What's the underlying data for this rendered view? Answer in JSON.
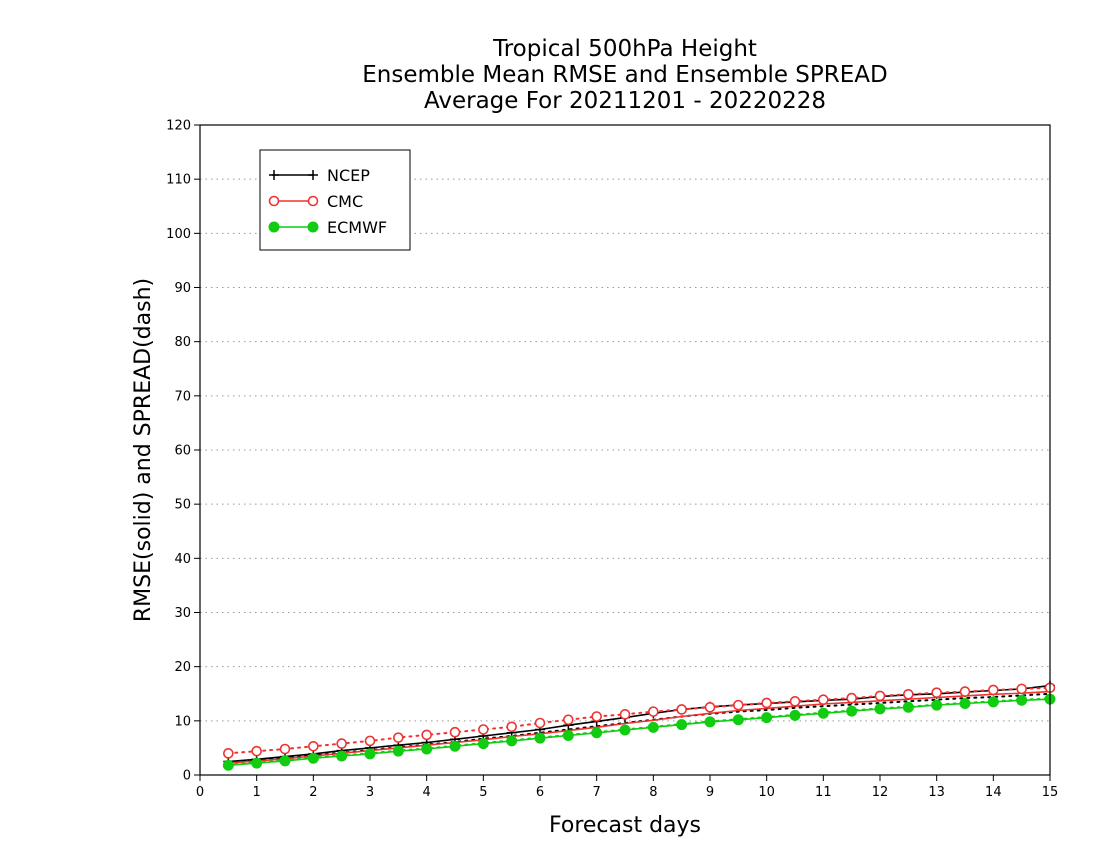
{
  "chart_data": {
    "type": "line",
    "title": [
      "Tropical 500hPa Height",
      "Ensemble Mean RMSE and Ensemble SPREAD",
      "Average For 20211201 - 20220228"
    ],
    "xlabel": "Forecast days",
    "ylabel": "RMSE(solid) and SPREAD(dash)",
    "xlim": [
      0,
      15
    ],
    "ylim": [
      0,
      120
    ],
    "xticks": [
      "0",
      "1",
      "2",
      "3",
      "4",
      "5",
      "6",
      "7",
      "8",
      "9",
      "10",
      "11",
      "12",
      "13",
      "14",
      "15"
    ],
    "yticks": [
      "0",
      "10",
      "20",
      "30",
      "40",
      "50",
      "60",
      "70",
      "80",
      "90",
      "100",
      "110",
      "120"
    ],
    "grid": true,
    "legend_position": "top-left",
    "x": [
      0.5,
      1,
      1.5,
      2,
      2.5,
      3,
      3.5,
      4,
      4.5,
      5,
      5.5,
      6,
      6.5,
      7,
      7.5,
      8,
      8.5,
      9,
      9.5,
      10,
      10.5,
      11,
      11.5,
      12,
      12.5,
      13,
      13.5,
      14,
      14.5,
      15
    ],
    "series": [
      {
        "name": "NCEP",
        "color": "#000000",
        "marker": "plus",
        "rmse": [
          2.5,
          2.9,
          3.4,
          3.9,
          4.5,
          5.0,
          5.5,
          6.0,
          6.6,
          7.2,
          7.8,
          8.4,
          9.2,
          9.9,
          10.6,
          11.4,
          12.1,
          12.6,
          12.9,
          13.2,
          13.5,
          13.8,
          14.0,
          14.5,
          14.8,
          15.0,
          15.3,
          15.6,
          15.9,
          16.5
        ],
        "spread": [
          2.3,
          2.7,
          3.1,
          3.6,
          4.1,
          4.6,
          5.1,
          5.6,
          6.1,
          6.7,
          7.2,
          7.8,
          8.4,
          9.0,
          9.6,
          10.2,
          10.8,
          11.3,
          11.7,
          12.0,
          12.4,
          12.7,
          13.0,
          13.3,
          13.6,
          13.9,
          14.2,
          14.4,
          14.7,
          15.0
        ]
      },
      {
        "name": "CMC",
        "color": "#ee3333",
        "marker": "open-circle",
        "rmse": [
          2.2,
          2.6,
          3.0,
          3.5,
          4.0,
          4.5,
          5.0,
          5.5,
          6.0,
          6.5,
          7.1,
          7.6,
          8.2,
          8.8,
          9.5,
          10.1,
          10.8,
          11.4,
          11.9,
          12.3,
          12.7,
          13.1,
          13.4,
          13.7,
          14.0,
          14.3,
          14.6,
          14.9,
          15.1,
          15.4
        ],
        "spread": [
          4.0,
          4.4,
          4.8,
          5.3,
          5.8,
          6.3,
          6.9,
          7.4,
          7.9,
          8.4,
          8.9,
          9.6,
          10.2,
          10.8,
          11.2,
          11.7,
          12.1,
          12.5,
          12.9,
          13.3,
          13.6,
          13.9,
          14.2,
          14.6,
          14.9,
          15.2,
          15.4,
          15.7,
          15.9,
          16.1
        ]
      },
      {
        "name": "ECMWF",
        "color": "#11cc11",
        "marker": "filled-circle",
        "rmse": [
          1.8,
          2.2,
          2.6,
          3.1,
          3.5,
          3.9,
          4.4,
          4.8,
          5.3,
          5.8,
          6.3,
          6.8,
          7.3,
          7.8,
          8.3,
          8.8,
          9.3,
          9.8,
          10.2,
          10.6,
          11.0,
          11.4,
          11.8,
          12.2,
          12.5,
          12.9,
          13.2,
          13.5,
          13.8,
          14.0
        ],
        "spread": [
          1.9,
          2.3,
          2.7,
          3.2,
          3.6,
          4.0,
          4.5,
          4.9,
          5.4,
          5.9,
          6.4,
          6.9,
          7.4,
          7.9,
          8.4,
          8.9,
          9.4,
          9.9,
          10.3,
          10.7,
          11.1,
          11.5,
          11.9,
          12.3,
          12.6,
          13.0,
          13.3,
          13.6,
          13.9,
          14.1
        ]
      }
    ]
  }
}
